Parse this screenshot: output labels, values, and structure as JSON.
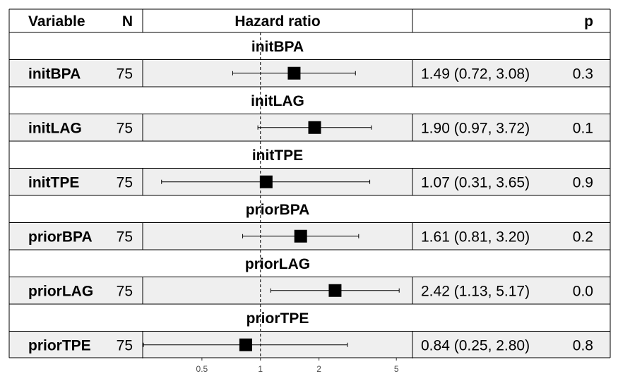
{
  "table": {
    "headers": {
      "variable": "Variable",
      "n": "N",
      "hazard_ratio": "Hazard ratio",
      "p": "p"
    }
  },
  "chart_data": {
    "type": "forest",
    "x_scale": "log",
    "reference_line": 1,
    "x_ticks": [
      0.5,
      1,
      2,
      5
    ],
    "x_tick_labels": [
      "0.5",
      "1",
      "2",
      "5"
    ],
    "xlim": [
      0.25,
      6.0
    ],
    "rows": [
      {
        "group": "initBPA",
        "variable": "initBPA",
        "n": "75",
        "hr": 1.49,
        "lower": 0.72,
        "upper": 3.08,
        "estimate_text": "1.49 (0.72, 3.08)",
        "p": "0.3"
      },
      {
        "group": "initLAG",
        "variable": "initLAG",
        "n": "75",
        "hr": 1.9,
        "lower": 0.97,
        "upper": 3.72,
        "estimate_text": "1.90 (0.97, 3.72)",
        "p": "0.1"
      },
      {
        "group": "initTPE",
        "variable": "initTPE",
        "n": "75",
        "hr": 1.07,
        "lower": 0.31,
        "upper": 3.65,
        "estimate_text": "1.07 (0.31, 3.65)",
        "p": "0.9"
      },
      {
        "group": "priorBPA",
        "variable": "priorBPA",
        "n": "75",
        "hr": 1.61,
        "lower": 0.81,
        "upper": 3.2,
        "estimate_text": "1.61 (0.81, 3.20)",
        "p": "0.2"
      },
      {
        "group": "priorLAG",
        "variable": "priorLAG",
        "n": "75",
        "hr": 2.42,
        "lower": 1.13,
        "upper": 5.17,
        "estimate_text": "2.42 (1.13, 5.17)",
        "p": "0.0"
      },
      {
        "group": "priorTPE",
        "variable": "priorTPE",
        "n": "75",
        "hr": 0.84,
        "lower": 0.25,
        "upper": 2.8,
        "estimate_text": "0.84 (0.25, 2.80)",
        "p": "0.8"
      }
    ]
  },
  "colors": {
    "band_light": "#ffffff",
    "band_shaded": "#efefef",
    "lines": "#000000",
    "tick_text": "#4d4d4d"
  }
}
